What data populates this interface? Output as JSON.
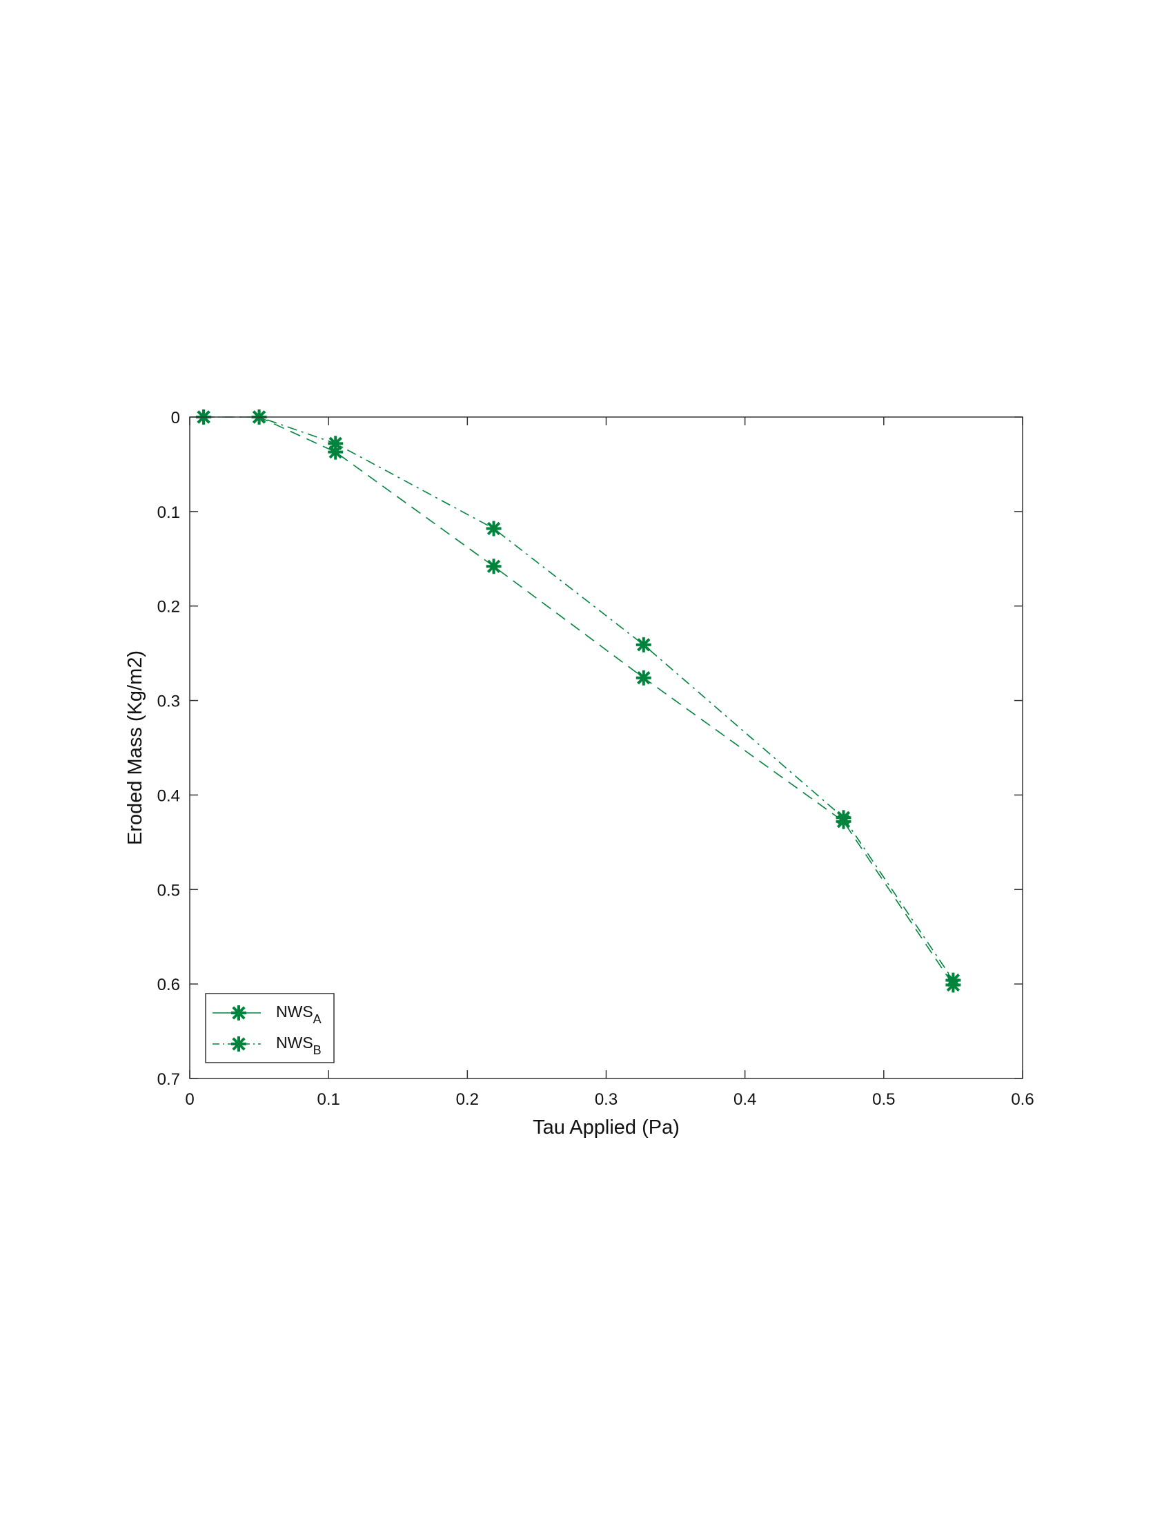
{
  "chart_data": {
    "type": "line",
    "title": "",
    "xlabel": "Tau Applied  (Pa)",
    "ylabel": "Eroded Mass  (Kg/m2)",
    "xlim": [
      0,
      0.6
    ],
    "ylim": [
      0,
      0.7
    ],
    "y_reversed": true,
    "grid": false,
    "xticks": [
      "0",
      "0.1",
      "0.2",
      "0.3",
      "0.4",
      "0.5",
      "0.6"
    ],
    "yticks": [
      "0",
      "0.1",
      "0.2",
      "0.3",
      "0.4",
      "0.5",
      "0.6",
      "0.7"
    ],
    "legend_placement": "bottom-left",
    "x": [
      0.01,
      0.05,
      0.105,
      0.219,
      0.327,
      0.471,
      0.55
    ],
    "series": [
      {
        "name": "NWS",
        "subscript": "A",
        "color": "#00843d",
        "line": "dashed",
        "marker": "asterisk",
        "values": [
          0,
          0,
          0.037,
          0.158,
          0.276,
          0.428,
          0.601
        ]
      },
      {
        "name": "NWS",
        "subscript": "B",
        "color": "#00843d",
        "line": "dash-dot",
        "marker": "asterisk",
        "values": [
          0,
          0,
          0.028,
          0.118,
          0.241,
          0.424,
          0.596
        ]
      }
    ]
  }
}
